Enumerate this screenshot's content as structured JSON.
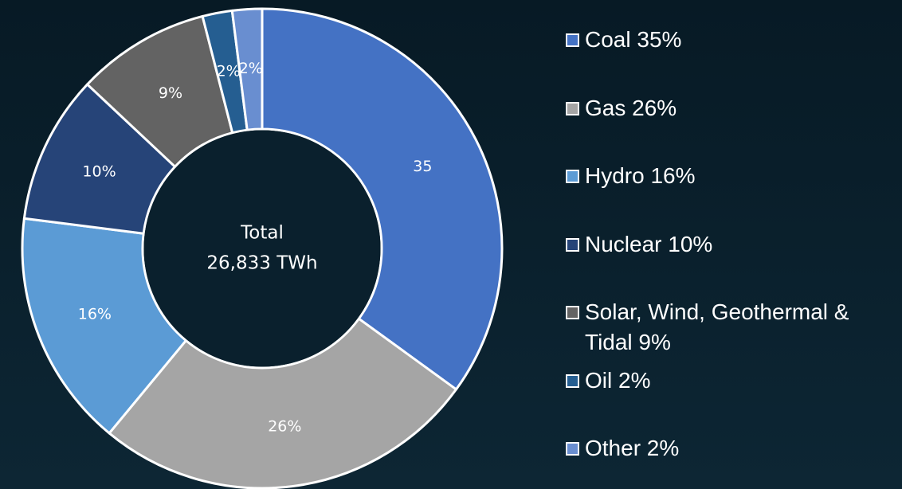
{
  "chart_data": {
    "type": "donut",
    "center_text": [
      "Total",
      "26,833 TWh"
    ],
    "categories": [
      "Coal 35%",
      "Gas 26%",
      "Hydro 16%",
      "Nuclear 10%",
      "Solar, Wind, Geothermal & Tidal 9%",
      "Oil 2%",
      "Other 2%"
    ],
    "values": [
      35,
      26,
      16,
      10,
      9,
      2,
      2
    ],
    "value_labels": [
      "35",
      "26%",
      "16%",
      "10%",
      "9%",
      "2%",
      "2%"
    ],
    "colors": [
      "#4472c4",
      "#a5a5a5",
      "#5b9bd5",
      "#264478",
      "#636363",
      "#255e91",
      "#698ed0"
    ],
    "legend": "right"
  }
}
